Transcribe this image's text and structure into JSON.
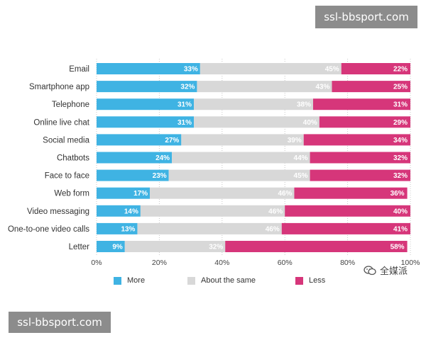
{
  "chart_data": {
    "type": "bar",
    "stacked": true,
    "orientation": "horizontal",
    "categories": [
      "Email",
      "Smartphone app",
      "Telephone",
      "Online live chat",
      "Social media",
      "Chatbots",
      "Face to face",
      "Web form",
      "Video messaging",
      "One-to-one video calls",
      "Letter"
    ],
    "series": [
      {
        "name": "More",
        "color": "#3fb3e3",
        "values": [
          33,
          32,
          31,
          31,
          27,
          24,
          23,
          17,
          14,
          13,
          9
        ],
        "labels": [
          "33%",
          "32%",
          "31%",
          "31%",
          "27%",
          "24%",
          "23%",
          "17%",
          "14%",
          "13%",
          "9%"
        ]
      },
      {
        "name": "About the same",
        "color": "#d8d8d8",
        "values": [
          45,
          43,
          38,
          40,
          39,
          44,
          45,
          46,
          46,
          46,
          32
        ],
        "labels": [
          "45%",
          "43%",
          "38%",
          "40%",
          "39%",
          "44%",
          "45%",
          "46%",
          "46%",
          "46%",
          "32%"
        ]
      },
      {
        "name": "Less",
        "color": "#d6367a",
        "values": [
          22,
          25,
          31,
          29,
          34,
          32,
          32,
          36,
          40,
          41,
          58
        ],
        "labels": [
          "22%",
          "25%",
          "31%",
          "29%",
          "34%",
          "32%",
          "32%",
          "36%",
          "40%",
          "41%",
          "58%"
        ]
      }
    ],
    "xlim": [
      0,
      100
    ],
    "xticks": [
      0,
      20,
      40,
      60,
      80,
      100
    ],
    "xtick_labels": [
      "0%",
      "20%",
      "40%",
      "60%",
      "80%",
      "100%"
    ],
    "grid": "vertical dotted",
    "legend_position": "bottom"
  },
  "watermarks": {
    "top": "ssl-bbsport.com",
    "bottom": "ssl-bbsport.com"
  },
  "brand": {
    "icon": "wechat-icon",
    "text": "全媒派"
  }
}
